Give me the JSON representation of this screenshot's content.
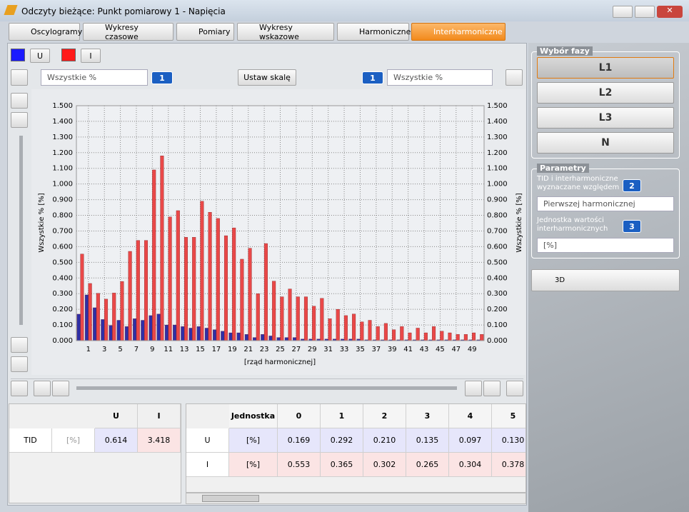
{
  "window": {
    "title": "Odczyty bieżące: Punkt pomiarowy 1 - Napięcia"
  },
  "tabs": [
    "Oscylogramy",
    "Wykresy czasowe",
    "Pomiary",
    "Wykresy wskazowe",
    "Harmoniczne",
    "Interharmoniczne"
  ],
  "toolbar": {
    "left_select": "Wszystkie %",
    "left_badge": "1",
    "scale_button": "Ustaw skalę",
    "right_badge": "1",
    "right_select": "Wszystkie %"
  },
  "chart_data": {
    "type": "bar",
    "y_label": "Wszystkie % [%]",
    "y2_label": "Wszystkie % [%]",
    "x_label": "[rząd harmonicznej]",
    "grid": true,
    "categories": [
      null,
      1,
      null,
      3,
      null,
      5,
      null,
      7,
      null,
      9,
      null,
      11,
      null,
      13,
      null,
      15,
      null,
      17,
      null,
      19,
      null,
      21,
      null,
      23,
      null,
      25,
      null,
      27,
      null,
      29,
      null,
      31,
      null,
      33,
      null,
      35,
      null,
      37,
      null,
      39,
      null,
      41,
      null,
      43,
      null,
      45,
      null,
      47,
      null,
      49,
      null
    ],
    "series": [
      {
        "name": "U",
        "color": "#2f2fa6",
        "values": [
          0.169,
          0.292,
          0.21,
          0.135,
          0.097,
          0.13,
          0.09,
          0.14,
          0.13,
          0.16,
          0.17,
          0.1,
          0.1,
          0.09,
          0.08,
          0.09,
          0.08,
          0.07,
          0.06,
          0.05,
          0.05,
          0.04,
          0.02,
          0.04,
          0.03,
          0.02,
          0.02,
          0.02,
          0.01,
          0.01,
          0.01,
          0.01,
          0.01,
          0.01,
          0.01,
          0.01,
          0.005,
          0.005,
          0.005,
          0.005,
          0.005,
          0.005,
          0.005,
          0.005,
          0.005,
          0.005,
          0.005,
          0.005,
          0.005,
          0.005,
          0.005
        ]
      },
      {
        "name": "I",
        "color": "#e94848",
        "values": [
          0.553,
          0.365,
          0.302,
          0.265,
          0.304,
          0.378,
          0.57,
          0.64,
          0.64,
          1.09,
          1.18,
          0.79,
          0.83,
          0.66,
          0.66,
          0.89,
          0.82,
          0.78,
          0.67,
          0.72,
          0.52,
          0.59,
          0.3,
          0.62,
          0.38,
          0.28,
          0.33,
          0.28,
          0.28,
          0.22,
          0.27,
          0.14,
          0.2,
          0.16,
          0.17,
          0.12,
          0.13,
          0.09,
          0.11,
          0.07,
          0.09,
          0.05,
          0.08,
          0.05,
          0.09,
          0.06,
          0.05,
          0.04,
          0.04,
          0.05,
          0.04
        ]
      }
    ],
    "ylim": [
      0,
      1.5
    ],
    "yticks": [
      {
        "value": 0,
        "label": "0.000"
      },
      {
        "value": 0.1,
        "label": "0.100"
      },
      {
        "value": 0.2,
        "label": "0.200"
      },
      {
        "value": 0.3,
        "label": "0.300"
      },
      {
        "value": 0.4,
        "label": "0.400"
      },
      {
        "value": 0.5,
        "label": "0.500"
      },
      {
        "value": 0.6,
        "label": "0.600"
      },
      {
        "value": 0.7,
        "label": "0.700"
      },
      {
        "value": 0.8,
        "label": "0.800"
      },
      {
        "value": 0.9,
        "label": "0.900"
      },
      {
        "value": 1,
        "label": "1.000"
      },
      {
        "value": 1.1,
        "label": "1.100"
      },
      {
        "value": 1.2,
        "label": "1.200"
      },
      {
        "value": 1.3,
        "label": "1.300"
      },
      {
        "value": 1.4,
        "label": "1.400"
      },
      {
        "value": 1.5,
        "label": "1.500"
      }
    ],
    "y2lim": [
      0,
      1.5
    ],
    "y2ticks": [
      {
        "value": 0,
        "label": "0.000"
      },
      {
        "value": 0.1,
        "label": "0.100"
      },
      {
        "value": 0.2,
        "label": "0.200"
      },
      {
        "value": 0.3,
        "label": "0.300"
      },
      {
        "value": 0.4,
        "label": "0.400"
      },
      {
        "value": 0.5,
        "label": "0.500"
      },
      {
        "value": 0.6,
        "label": "0.600"
      },
      {
        "value": 0.7,
        "label": "0.700"
      },
      {
        "value": 0.8,
        "label": "0.800"
      },
      {
        "value": 0.9,
        "label": "0.900"
      },
      {
        "value": 1,
        "label": "1.000"
      },
      {
        "value": 1.1,
        "label": "1.100"
      },
      {
        "value": 1.2,
        "label": "1.200"
      },
      {
        "value": 1.3,
        "label": "1.300"
      },
      {
        "value": 1.4,
        "label": "1.400"
      },
      {
        "value": 1.5,
        "label": "1.500"
      }
    ]
  },
  "summary_table": {
    "header": [
      "U",
      "I"
    ],
    "rows": [
      [
        "TID",
        "[%]",
        "0.614",
        "3.418"
      ]
    ]
  },
  "harmonics_table": {
    "header": [
      "Jednostka",
      "0",
      "1",
      "2",
      "3",
      "4",
      "5"
    ],
    "rows": [
      [
        "U",
        "[%]",
        "0.169",
        "0.292",
        "0.210",
        "0.135",
        "0.097",
        "0.130"
      ],
      [
        "I",
        "[%]",
        "0.553",
        "0.365",
        "0.302",
        "0.265",
        "0.304",
        "0.378"
      ]
    ]
  },
  "phase_panel": {
    "title": "Wybór fazy",
    "buttons": [
      "L1",
      "L2",
      "L3",
      "N"
    ]
  },
  "params_panel": {
    "title": "Parametry",
    "tid_label": "TID i interharmoniczne wyznaczane względem",
    "tid_badge": "2",
    "tid_select": "Pierwszej harmonicznej",
    "unit_label": "Jednostka wartości interharmonicznych",
    "unit_badge": "3",
    "unit_select": "[%]"
  },
  "button_3d": "3D"
}
